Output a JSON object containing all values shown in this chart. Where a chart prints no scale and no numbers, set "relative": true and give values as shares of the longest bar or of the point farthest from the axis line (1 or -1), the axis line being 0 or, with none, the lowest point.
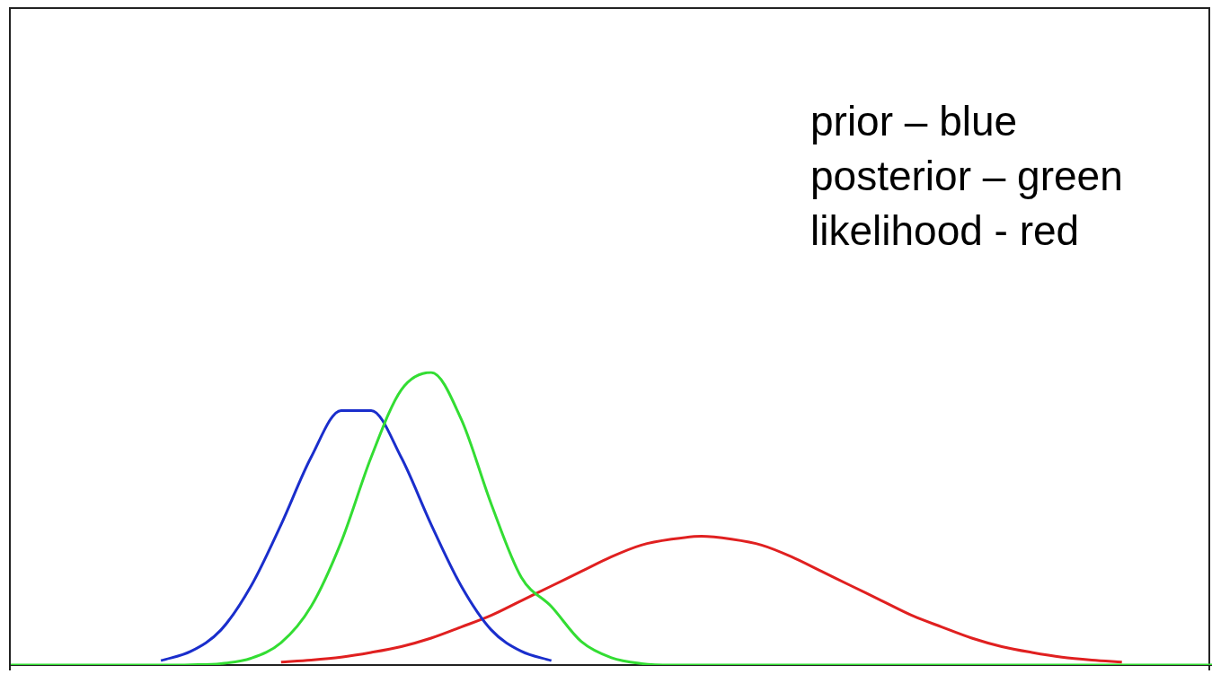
{
  "chart_data": {
    "type": "line",
    "relative": true,
    "categories": [
      null,
      null,
      null,
      null,
      null,
      null,
      null,
      null,
      null,
      null,
      null,
      null,
      null,
      null,
      null,
      null,
      null,
      null,
      null,
      null,
      null,
      null,
      null,
      null,
      null,
      null,
      null,
      null,
      null,
      null,
      null,
      null,
      null,
      null,
      null,
      null,
      null,
      null,
      null,
      null,
      null
    ],
    "series": [
      {
        "color": "#33dd33",
        "values": [
          0,
          0,
          0,
          0,
          0,
          0,
          0.001,
          0.005,
          0.023,
          0.076,
          0.2,
          0.42,
          0.71,
          0.94,
          1,
          0.84,
          0.55,
          0.3,
          0.2,
          0.08,
          0.025,
          0.005,
          0,
          0,
          0,
          0,
          0,
          0,
          0,
          0,
          0,
          0,
          0,
          0,
          0,
          0,
          0,
          0,
          0,
          0,
          0
        ]
      },
      {
        "color": "#1a2ecc",
        "values": [
          null,
          null,
          null,
          null,
          null,
          0.015,
          0.047,
          0.12,
          0.27,
          0.48,
          0.71,
          0.87,
          0.87,
          0.71,
          0.48,
          0.27,
          0.12,
          0.047,
          0.015,
          null,
          null,
          null,
          null,
          null,
          null,
          null,
          null,
          null,
          null,
          null,
          null,
          null,
          null,
          null,
          null,
          null,
          null,
          null,
          null,
          null,
          null
        ]
      },
      {
        "color": "#e02020",
        "values": [
          null,
          null,
          null,
          null,
          null,
          null,
          null,
          null,
          null,
          0.01,
          0.017,
          0.027,
          0.043,
          0.063,
          0.092,
          0.13,
          0.17,
          0.22,
          0.27,
          0.32,
          0.37,
          0.41,
          0.43,
          0.44,
          0.43,
          0.41,
          0.37,
          0.32,
          0.27,
          0.22,
          0.17,
          0.13,
          0.092,
          0.063,
          0.043,
          0.027,
          0.017,
          0.01,
          null,
          null,
          null
        ]
      }
    ],
    "annotations": [
      "prior – blue",
      "posterior – green",
      "likelihood - red"
    ]
  }
}
